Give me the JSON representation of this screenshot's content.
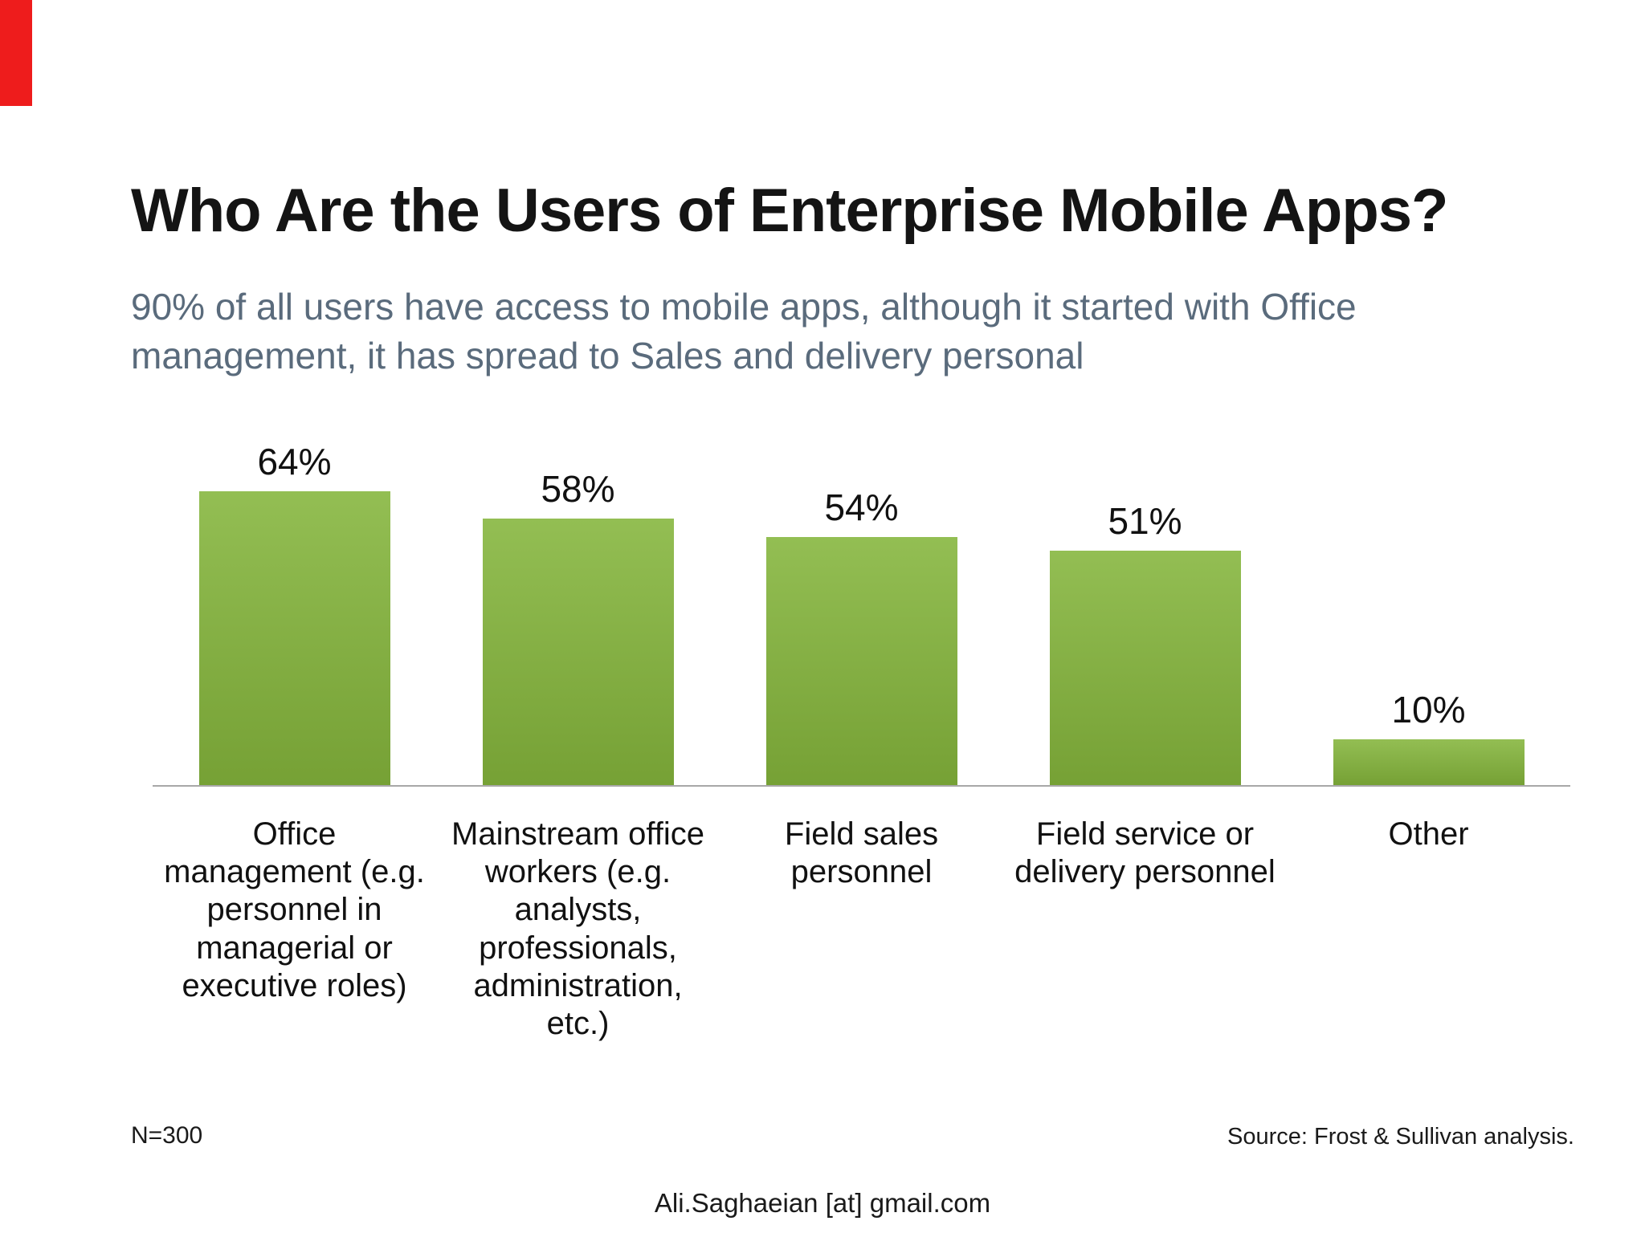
{
  "slide": {
    "title": "Who Are the Users of Enterprise Mobile Apps?",
    "subtitle": "90% of all users have access to mobile apps, although it started with Office management, it has spread to Sales and delivery personal",
    "footnote_left": "N=300",
    "footnote_right": "Source: Frost & Sullivan analysis.",
    "footer_email": "Ali.Saghaeian [at] gmail.com",
    "accent_color": "#ee1c1c"
  },
  "chart_data": {
    "type": "bar",
    "title": "Who Are the Users of Enterprise Mobile Apps?",
    "categories": [
      "Office management (e.g. personnel in managerial or executive roles)",
      "Mainstream office workers (e.g. analysts, professionals, administration, etc.)",
      "Field sales personnel",
      "Field service or delivery personnel",
      "Other"
    ],
    "values": [
      64,
      58,
      54,
      51,
      10
    ],
    "value_labels": [
      "64%",
      "58%",
      "54%",
      "51%",
      "10%"
    ],
    "unit": "%",
    "ylim": [
      0,
      70
    ],
    "grid": false,
    "legend": false,
    "bar_color_top": "#93be53",
    "bar_color_bottom": "#76a135",
    "sample_note": "N=300",
    "source": "Source: Frost & Sullivan analysis."
  }
}
